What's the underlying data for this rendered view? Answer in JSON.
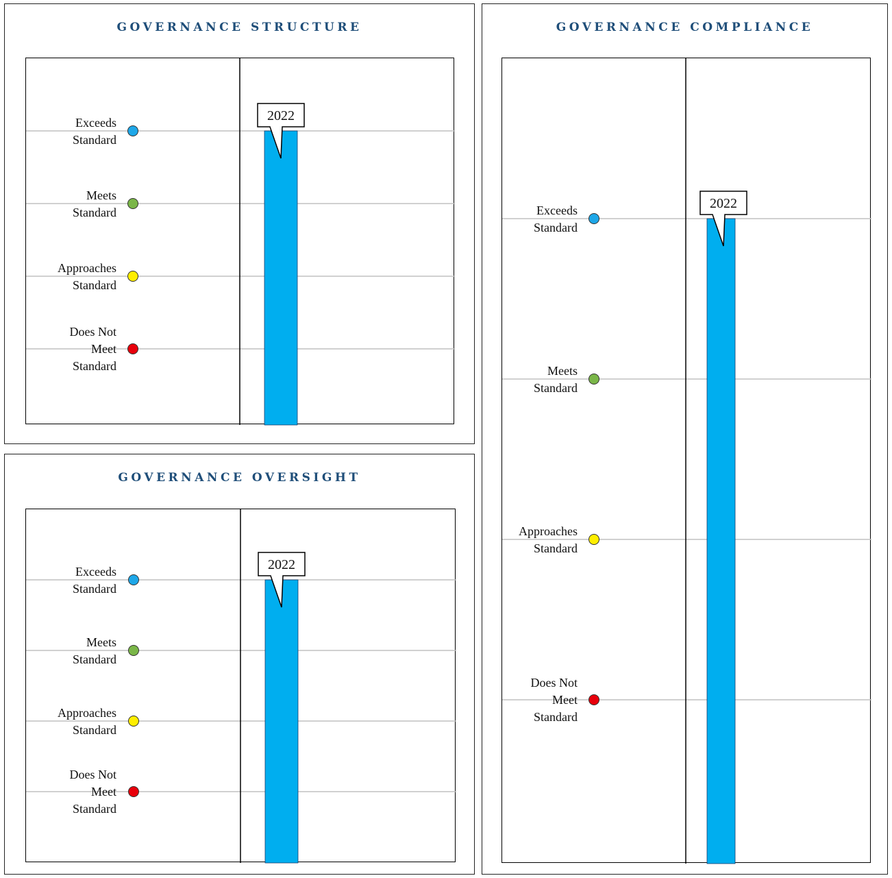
{
  "colors": {
    "title": "#1f4e79",
    "bar": "#00aeef",
    "gridline": "#c0c0c0",
    "exceeds": "#1ea7e8",
    "meets": "#7ab648",
    "approaches": "#ffee00",
    "does_not_meet": "#e8000b"
  },
  "chart_data": [
    {
      "type": "bar",
      "title": "GOVERNANCE STRUCTURE",
      "levels": [
        {
          "label": [
            "Exceeds",
            "Standard"
          ],
          "value": 4,
          "color": "#1ea7e8"
        },
        {
          "label": [
            "Meets",
            "Standard"
          ],
          "value": 3,
          "color": "#7ab648"
        },
        {
          "label": [
            "Approaches",
            "Standard"
          ],
          "value": 2,
          "color": "#ffee00"
        },
        {
          "label": [
            "Does Not",
            "Meet",
            "Standard"
          ],
          "value": 1,
          "color": "#e8000b"
        }
      ],
      "categories": [
        "2022"
      ],
      "values": [
        4
      ],
      "ylim": [
        0,
        5
      ]
    },
    {
      "type": "bar",
      "title": "GOVERNANCE COMPLIANCE",
      "levels": [
        {
          "label": [
            "Exceeds",
            "Standard"
          ],
          "value": 4,
          "color": "#1ea7e8"
        },
        {
          "label": [
            "Meets",
            "Standard"
          ],
          "value": 3,
          "color": "#7ab648"
        },
        {
          "label": [
            "Approaches",
            "Standard"
          ],
          "value": 2,
          "color": "#ffee00"
        },
        {
          "label": [
            "Does Not",
            "Meet",
            "Standard"
          ],
          "value": 1,
          "color": "#e8000b"
        }
      ],
      "categories": [
        "2022"
      ],
      "values": [
        4
      ],
      "ylim": [
        0,
        5
      ]
    },
    {
      "type": "bar",
      "title": "GOVERNANCE OVERSIGHT",
      "levels": [
        {
          "label": [
            "Exceeds",
            "Standard"
          ],
          "value": 4,
          "color": "#1ea7e8"
        },
        {
          "label": [
            "Meets",
            "Standard"
          ],
          "value": 3,
          "color": "#7ab648"
        },
        {
          "label": [
            "Approaches",
            "Standard"
          ],
          "value": 2,
          "color": "#ffee00"
        },
        {
          "label": [
            "Does Not",
            "Meet",
            "Standard"
          ],
          "value": 1,
          "color": "#e8000b"
        }
      ],
      "categories": [
        "2022"
      ],
      "values": [
        4
      ],
      "ylim": [
        0,
        5
      ]
    }
  ]
}
